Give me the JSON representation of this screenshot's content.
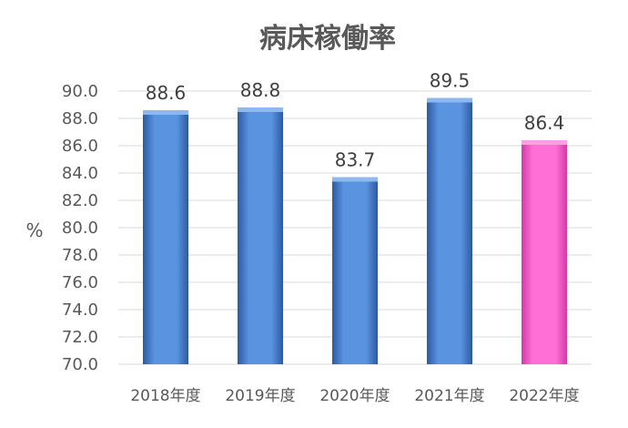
{
  "chart_data": {
    "type": "bar",
    "title": "病床稼働率",
    "ylabel": "%",
    "categories": [
      "2018年度",
      "2019年度",
      "2020年度",
      "2021年度",
      "2022年度"
    ],
    "series": [
      {
        "values": [
          88.6,
          88.8,
          83.7,
          89.5,
          86.4
        ]
      }
    ],
    "data_labels": [
      "88.6",
      "88.8",
      "83.7",
      "89.5",
      "86.4"
    ],
    "ylim": [
      70.0,
      90.0
    ],
    "yticks": [
      "70.0",
      "72.0",
      "74.0",
      "76.0",
      "78.0",
      "80.0",
      "82.0",
      "84.0",
      "86.0",
      "88.0",
      "90.0"
    ],
    "grid": true,
    "legend": "none",
    "colors": {
      "bar": "#4f81c9",
      "highlight": "#ff5cc8"
    },
    "highlight_index": 4
  }
}
